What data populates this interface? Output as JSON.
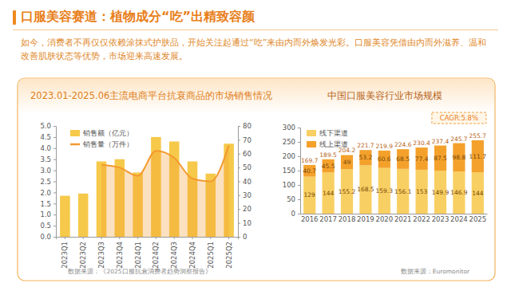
{
  "page": {
    "title": "口服美容赛道：植物成分“吃”出精致容颜",
    "text": "如今，消费者不再仅仅依赖涂抹式护肤品，开始关注起通过“吃”来由内而外焕发光彩。口服美容凭借由内而外滋养、温和改善肌肤状态等优势，市场迎来高速发展。"
  },
  "chart_data": [
    {
      "type": "bar",
      "title": "2023.01-2025.06主流电商平台抗衰商品的市场销售情况",
      "source": "数据来源：《2025口服抗衰消费者趋势洞察报告》",
      "categories": [
        "2023Q1",
        "2023Q2",
        "2023Q3",
        "2023Q4",
        "2024Q1",
        "2024Q2",
        "2024Q3",
        "2024Q4",
        "2025Q1",
        "2025Q2"
      ],
      "series": [
        {
          "name": "销售额（亿元）",
          "type": "bar",
          "color": "#f6c94a",
          "values": [
            1.85,
            1.95,
            3.4,
            3.5,
            2.9,
            4.5,
            4.3,
            3.4,
            2.85,
            4.2
          ]
        },
        {
          "name": "销售量（万件）",
          "type": "line",
          "axis": "y2",
          "color": "#f39a2e",
          "values": [
            null,
            null,
            52,
            50,
            44,
            62,
            57,
            42,
            40,
            66
          ]
        }
      ],
      "ylim": [
        0,
        5
      ],
      "yticks": [
        {
          "value": 0,
          "label": "0.0"
        },
        {
          "value": 0.5,
          "label": "0.5"
        },
        {
          "value": 1,
          "label": "1.0"
        },
        {
          "value": 1.5,
          "label": "1.5"
        },
        {
          "value": 2,
          "label": "2.0"
        },
        {
          "value": 2.5,
          "label": "2.5"
        },
        {
          "value": 3,
          "label": "3.0"
        },
        {
          "value": 3.5,
          "label": "3.5"
        },
        {
          "value": 4,
          "label": "4.0"
        },
        {
          "value": 4.5,
          "label": "4.5"
        },
        {
          "value": 5,
          "label": "5.0"
        }
      ],
      "y2lim": [
        0,
        80
      ],
      "y2ticks": [
        0,
        10,
        20,
        30,
        40,
        50,
        60,
        70,
        80
      ],
      "grid": false,
      "legend": "top-left",
      "data_labels": false
    },
    {
      "type": "bar",
      "title": "中国口服美容行业市场规模",
      "source": "数据来源：Euromonitor",
      "annotation": "CAGR:5.8%",
      "categories": [
        "2016",
        "2017",
        "2018",
        "2019",
        "2020",
        "2021",
        "2022",
        "2023",
        "2024",
        "2025"
      ],
      "series": [
        {
          "name": "线下渠道",
          "color": "#f8cf62",
          "values": [
            129,
            144,
            155.2,
            168.5,
            159.3,
            156.1,
            153,
            149.9,
            146.9,
            144
          ]
        },
        {
          "name": "线上渠道",
          "color": "#f4a12c",
          "values": [
            40.7,
            45.5,
            49,
            53.2,
            60.6,
            68.5,
            77.4,
            87.5,
            98.8,
            111.7
          ]
        }
      ],
      "totals": [
        169.7,
        189.5,
        204.2,
        221.7,
        219.9,
        224.6,
        230.4,
        237.4,
        245.7,
        255.7
      ],
      "ylim": [
        0,
        300
      ],
      "yticks": [
        0,
        50,
        100,
        150,
        200,
        250,
        300
      ],
      "stacked": true,
      "grid": false,
      "legend": "top-left",
      "data_labels": true
    }
  ]
}
